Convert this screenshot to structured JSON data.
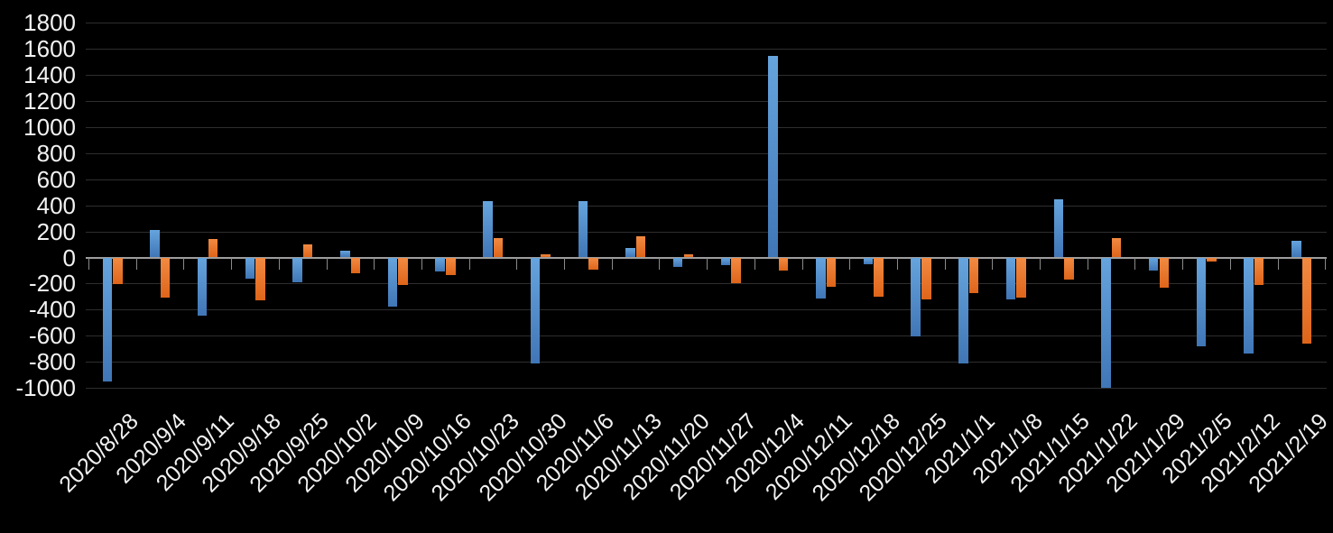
{
  "chart_data": {
    "type": "bar",
    "title": "",
    "xlabel": "",
    "ylabel": "",
    "categories": [
      "2020/8/28",
      "2020/9/4",
      "2020/9/11",
      "2020/9/18",
      "2020/9/25",
      "2020/10/2",
      "2020/10/9",
      "2020/10/16",
      "2020/10/23",
      "2020/10/30",
      "2020/11/6",
      "2020/11/13",
      "2020/11/20",
      "2020/11/27",
      "2020/12/4",
      "2020/12/11",
      "2020/12/18",
      "2020/12/25",
      "2021/1/1",
      "2021/1/8",
      "2021/1/15",
      "2021/1/22",
      "2021/1/29",
      "2021/2/5",
      "2021/2/12",
      "2021/2/19"
    ],
    "series": [
      {
        "name": "blue-series",
        "color": "#4E8CC8",
        "color_top": "#66A4DD",
        "color_bottom": "#4076B6",
        "values": [
          -950,
          210,
          -445,
          -160,
          -190,
          55,
          -380,
          -105,
          435,
          -810,
          430,
          75,
          -70,
          -60,
          1550,
          -315,
          -55,
          -605,
          -815,
          -325,
          445,
          -1000,
          -100,
          -680,
          -735,
          130
        ]
      },
      {
        "name": "orange-series",
        "color": "#ED7D31",
        "color_top": "#F28A42",
        "color_bottom": "#DE651A",
        "values": [
          -205,
          -305,
          145,
          -330,
          100,
          -120,
          -210,
          -135,
          150,
          25,
          -90,
          160,
          25,
          -200,
          -100,
          -225,
          -300,
          -320,
          -270,
          -305,
          -170,
          150,
          -230,
          -30,
          -210,
          -660
        ]
      }
    ],
    "ylim": [
      -1000,
      1800
    ],
    "ytick_step": 200,
    "yticks": [
      1800,
      1600,
      1400,
      1200,
      1000,
      800,
      600,
      400,
      200,
      0,
      -200,
      -400,
      -600,
      -800,
      -1000
    ],
    "grid": true,
    "legend_position": "none",
    "x_label_rotation_deg": 45,
    "colors": {
      "background": "#000000",
      "gridline": "#2e2e2e",
      "zero_line": "#9e9e9e",
      "axis_tick": "#8a8a8a",
      "text": "#f2f2f2"
    }
  }
}
